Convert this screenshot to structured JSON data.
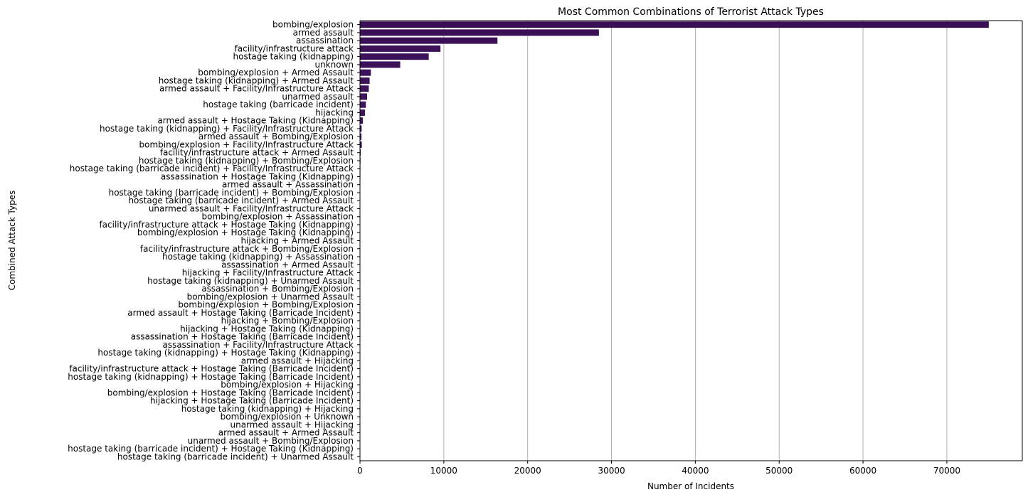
{
  "chart_data": {
    "type": "bar",
    "orientation": "horizontal",
    "title": "Most Common Combinations of Terrorist Attack Types",
    "xlabel": "Number of Incidents",
    "ylabel": "Combined Attack Types",
    "xlim": [
      0,
      79000
    ],
    "xticks": [
      0,
      10000,
      20000,
      30000,
      40000,
      50000,
      60000,
      70000
    ],
    "grid": "x",
    "categories": [
      "bombing/explosion",
      "armed assault",
      "assassination",
      "facility/infrastructure attack",
      "hostage taking (kidnapping)",
      "unknown",
      "bombing/explosion + Armed Assault",
      "hostage taking (kidnapping) + Armed Assault",
      "armed assault + Facility/Infrastructure Attack",
      "unarmed assault",
      "hostage taking (barricade incident)",
      "hijacking",
      "armed assault + Hostage Taking (Kidnapping)",
      "hostage taking (kidnapping) + Facility/Infrastructure Attack",
      "armed assault + Bombing/Explosion",
      "bombing/explosion + Facility/Infrastructure Attack",
      "facility/infrastructure attack + Armed Assault",
      "hostage taking (kidnapping) + Bombing/Explosion",
      "hostage taking (barricade incident) + Facility/Infrastructure Attack",
      "assassination + Hostage Taking (Kidnapping)",
      "armed assault + Assassination",
      "hostage taking (barricade incident) + Bombing/Explosion",
      "hostage taking (barricade incident) + Armed Assault",
      "unarmed assault + Facility/Infrastructure Attack",
      "bombing/explosion + Assassination",
      "facility/infrastructure attack + Hostage Taking (Kidnapping)",
      "bombing/explosion + Hostage Taking (Kidnapping)",
      "hijacking + Armed Assault",
      "facility/infrastructure attack + Bombing/Explosion",
      "hostage taking (kidnapping) + Assassination",
      "assassination + Armed Assault",
      "hijacking + Facility/Infrastructure Attack",
      "hostage taking (kidnapping) + Unarmed Assault",
      "assassination + Bombing/Explosion",
      "bombing/explosion + Unarmed Assault",
      "bombing/explosion + Bombing/Explosion",
      "armed assault + Hostage Taking (Barricade Incident)",
      "hijacking + Bombing/Explosion",
      "hijacking + Hostage Taking (Kidnapping)",
      "assassination + Hostage Taking (Barricade Incident)",
      "assassination + Facility/Infrastructure Attack",
      "hostage taking (kidnapping) + Hostage Taking (Kidnapping)",
      "armed assault + Hijacking",
      "facility/infrastructure attack + Hostage Taking (Barricade Incident)",
      "hostage taking (kidnapping) + Hostage Taking (Barricade Incident)",
      "bombing/explosion + Hijacking",
      "bombing/explosion + Hostage Taking (Barricade Incident)",
      "hijacking + Hostage Taking (Barricade Incident)",
      "hostage taking (kidnapping) + Hijacking",
      "bombing/explosion + Unknown",
      "unarmed assault + Hijacking",
      "armed assault + Armed Assault",
      "unarmed assault + Bombing/Explosion",
      "hostage taking (barricade incident) + Hostage Taking (Kidnapping)",
      "hostage taking (barricade incident) + Unarmed Assault"
    ],
    "values": [
      75000,
      28500,
      16400,
      9600,
      8200,
      4800,
      1300,
      1150,
      1050,
      850,
      700,
      600,
      350,
      200,
      180,
      220,
      90,
      70,
      55,
      50,
      45,
      40,
      38,
      35,
      30,
      28,
      25,
      22,
      20,
      18,
      17,
      15,
      14,
      12,
      11,
      10,
      9,
      8,
      7,
      7,
      6,
      5,
      5,
      4,
      4,
      4,
      3,
      3,
      3,
      2,
      2,
      2,
      1,
      1,
      1
    ],
    "palette": {
      "start": "#3b0f55",
      "end": "#46337e"
    }
  },
  "colors": {
    "grid": "#b0b0b0",
    "axis": "#000000"
  }
}
